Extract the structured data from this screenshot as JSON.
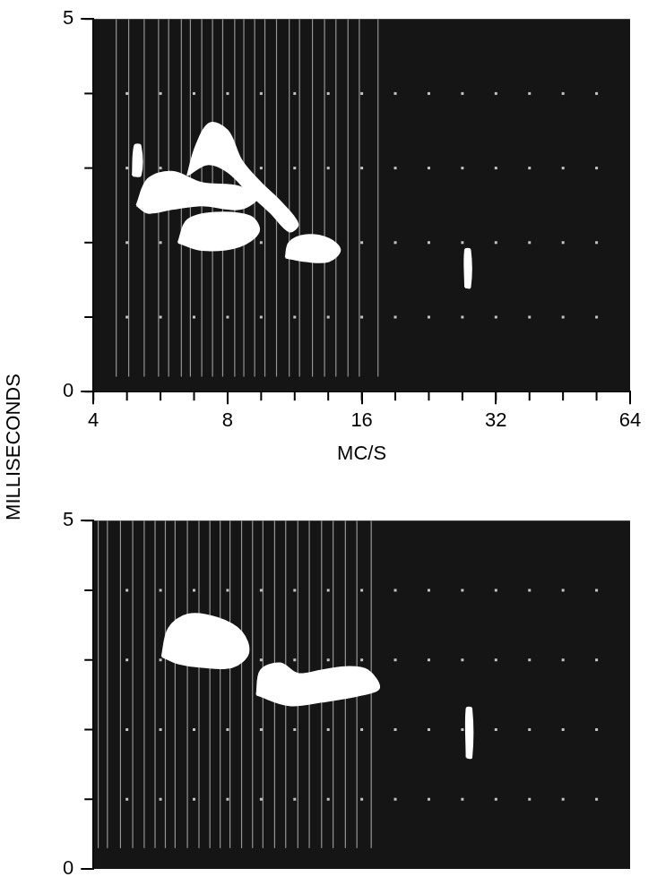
{
  "chart_data": [
    {
      "type": "spectrogram",
      "xlabel": "MC/S",
      "ylabel": "MILLISECONDS",
      "log": "x",
      "xlim": [
        4,
        64
      ],
      "xticks": [
        4,
        8,
        16,
        32,
        64
      ],
      "ylim": [
        0,
        5
      ],
      "yticks": [
        0,
        5
      ],
      "color": "#ffffff",
      "interference": [
        4.5,
        4.8,
        5.2,
        5.6,
        5.9,
        6.3,
        6.6,
        7.0,
        7.4,
        7.8,
        8.3,
        8.7,
        9.2,
        9.7,
        10.3,
        11.0,
        11.6,
        12.4,
        13.2,
        14.0,
        14.9,
        15.8,
        17.4
      ],
      "interference_span": [
        0.2,
        5
      ],
      "bursts": [
        [
          [
            5.0,
            2.5
          ],
          [
            5.3,
            2.85
          ],
          [
            6.0,
            2.95
          ],
          [
            7.0,
            2.8
          ],
          [
            8.5,
            2.75
          ],
          [
            9.3,
            2.6
          ],
          [
            8.5,
            2.45
          ],
          [
            7.0,
            2.5
          ],
          [
            6.0,
            2.45
          ],
          [
            5.3,
            2.4
          ]
        ],
        [
          [
            6.2,
            2.0
          ],
          [
            6.5,
            2.3
          ],
          [
            7.5,
            2.4
          ],
          [
            9.0,
            2.35
          ],
          [
            9.4,
            2.15
          ],
          [
            8.5,
            1.95
          ],
          [
            7.0,
            1.9
          ]
        ],
        [
          [
            10.8,
            1.8
          ],
          [
            11.0,
            2.0
          ],
          [
            12.0,
            2.1
          ],
          [
            13.5,
            2.05
          ],
          [
            14.3,
            1.9
          ],
          [
            13.5,
            1.75
          ],
          [
            12.0,
            1.75
          ]
        ],
        [
          [
            6.5,
            2.9
          ],
          [
            6.8,
            3.3
          ],
          [
            7.3,
            3.6
          ],
          [
            8.0,
            3.5
          ],
          [
            8.6,
            3.1
          ],
          [
            9.5,
            2.8
          ],
          [
            10.5,
            2.55
          ],
          [
            11.5,
            2.25
          ],
          [
            11.0,
            2.15
          ],
          [
            10.0,
            2.4
          ],
          [
            9.0,
            2.65
          ],
          [
            8.0,
            2.95
          ],
          [
            7.2,
            3.05
          ]
        ],
        [
          [
            4.9,
            2.9
          ],
          [
            4.95,
            3.3
          ],
          [
            5.1,
            3.3
          ],
          [
            5.1,
            2.9
          ]
        ],
        [
          [
            27.3,
            1.4
          ],
          [
            27.3,
            1.9
          ],
          [
            28.0,
            1.9
          ],
          [
            28.0,
            1.4
          ]
        ]
      ]
    },
    {
      "type": "spectrogram",
      "log": "x",
      "tick_labels": "y",
      "xlim": [
        4,
        64
      ],
      "ylim": [
        0,
        5
      ],
      "yticks": [
        0,
        5
      ],
      "color": "#ffffff",
      "interference": [
        4.1,
        4.3,
        4.6,
        4.9,
        5.2,
        5.5,
        5.8,
        6.1,
        6.5,
        6.9,
        7.3,
        7.7,
        8.1,
        8.6,
        9.1,
        9.6,
        10.2,
        10.8,
        11.5,
        12.2,
        13.0,
        13.8,
        14.7,
        15.6,
        16.8
      ],
      "interference_span": [
        0.3,
        5
      ],
      "bursts": [
        [
          [
            5.7,
            3.05
          ],
          [
            5.9,
            3.45
          ],
          [
            6.5,
            3.65
          ],
          [
            7.6,
            3.6
          ],
          [
            8.6,
            3.4
          ],
          [
            8.9,
            3.1
          ],
          [
            8.2,
            2.9
          ],
          [
            7.0,
            2.9
          ],
          [
            6.2,
            2.95
          ]
        ],
        [
          [
            9.3,
            2.5
          ],
          [
            9.5,
            2.85
          ],
          [
            10.5,
            2.95
          ],
          [
            11.5,
            2.8
          ],
          [
            13.0,
            2.85
          ],
          [
            15.0,
            2.9
          ],
          [
            16.5,
            2.85
          ],
          [
            17.5,
            2.6
          ],
          [
            16.0,
            2.5
          ],
          [
            13.0,
            2.4
          ],
          [
            11.0,
            2.35
          ]
        ],
        [
          [
            27.5,
            1.6
          ],
          [
            27.5,
            2.3
          ],
          [
            28.2,
            2.3
          ],
          [
            28.2,
            1.6
          ]
        ]
      ]
    }
  ]
}
